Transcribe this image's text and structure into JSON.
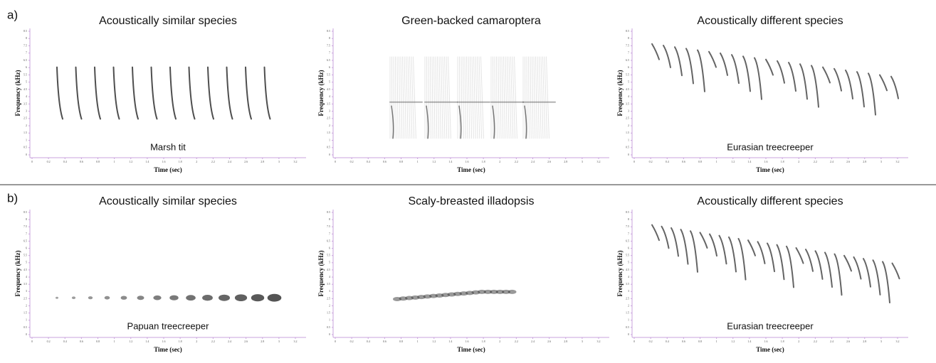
{
  "rows": [
    {
      "label": "a)",
      "panels": [
        {
          "title": "Acoustically similar species",
          "species": "Marsh tit"
        },
        {
          "title": "Green-backed camaroptera"
        },
        {
          "title": "Acoustically different species",
          "species": "Eurasian treecreeper"
        }
      ]
    },
    {
      "label": "b)",
      "panels": [
        {
          "title": "Acoustically similar species",
          "species": "Papuan treecreeper"
        },
        {
          "title": "Scaly-breasted illadopsis"
        },
        {
          "title": "Acoustically different species",
          "species": "Eurasian treecreeper"
        }
      ]
    }
  ],
  "axes": {
    "x_label": "Time (sec)",
    "y_label": "Frequency (kHz)",
    "x_ticks": [
      0,
      0.2,
      0.4,
      0.6,
      0.8,
      1,
      1.2,
      1.4,
      1.6,
      1.8,
      2,
      2.2,
      2.4,
      2.6,
      2.8,
      3,
      3.2
    ],
    "y_ticks": [
      0,
      0.5,
      1,
      1.5,
      2,
      2.5,
      3,
      3.5,
      4,
      4.5,
      5,
      5.5,
      6,
      6.5,
      7,
      7.5,
      8,
      8.5
    ]
  }
}
